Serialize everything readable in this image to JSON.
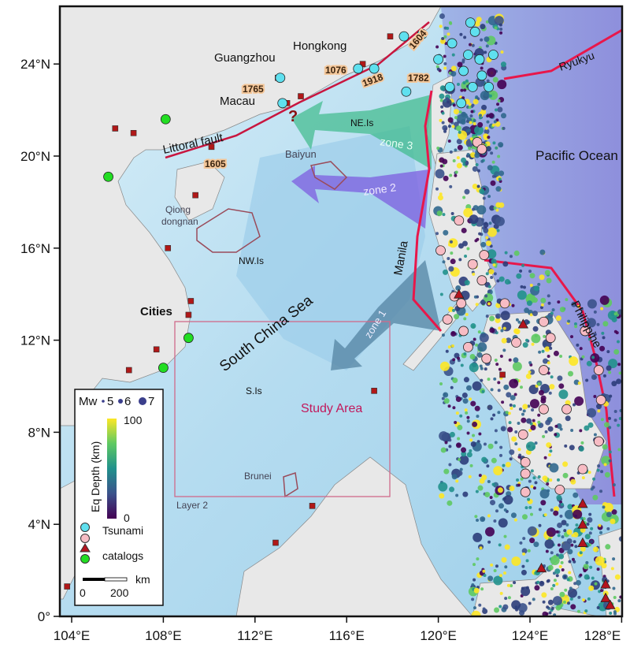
{
  "map": {
    "lon_range": [
      103.5,
      128.0
    ],
    "lat_range": [
      0,
      26.5
    ],
    "lon_ticks": [
      {
        "v": 104,
        "label": "104°E"
      },
      {
        "v": 108,
        "label": "108°E"
      },
      {
        "v": 112,
        "label": "112°E"
      },
      {
        "v": 116,
        "label": "116°E"
      },
      {
        "v": 120,
        "label": "120°E"
      },
      {
        "v": 124,
        "label": "124°E"
      },
      {
        "v": 128,
        "label": "128°E"
      }
    ],
    "lat_ticks": [
      {
        "v": 0,
        "label": "0°"
      },
      {
        "v": 4,
        "label": "4°N"
      },
      {
        "v": 8,
        "label": "8°N"
      },
      {
        "v": 12,
        "label": "12°N"
      },
      {
        "v": 16,
        "label": "16°N"
      },
      {
        "v": 20,
        "label": "20°N"
      },
      {
        "v": 24,
        "label": "24°N"
      }
    ],
    "colors": {
      "land": "#e6e6e6",
      "shelf": "#cfe9f5",
      "basin": "#a9d6ee",
      "pacific": "#9aa6e0",
      "trench": "#e8174a",
      "fault": "#c8163f",
      "tsunami_cyan": "#5fe0ef",
      "tsunami_pink": "#f7bcc4",
      "catalog_triangle": "#b4141e",
      "catalog_green": "#22dd22",
      "city_square": "#b01818",
      "study_area": "#c2185b"
    }
  },
  "labels": {
    "guangzhou": "Guangzhou",
    "hongkong": "Hongkong",
    "macau": "Macau",
    "question": "?",
    "littoral_fault": "Littoral fault",
    "ne_is": "NE.Is",
    "zone3": "zone 3",
    "zone2": "zone 2",
    "zone1": "zone 1",
    "baiyun": "Baiyun",
    "pacific": "Pacific Ocean",
    "ryukyu": "Ryukyu",
    "qiong1": "Qiong",
    "qiong2": "dongnan",
    "nw_is": "NW.Is",
    "manila": "Manila",
    "scs": "South China Sea",
    "philippine": "Philippine",
    "s_is": "S.Is",
    "study_area": "Study Area",
    "brunei": "Brunei",
    "layer2": "Layer 2",
    "cities": "Cities"
  },
  "dates": [
    "1765",
    "1076",
    "1918",
    "1604",
    "1782",
    "1605"
  ],
  "legend": {
    "mw_label": "Mw",
    "mw_sizes": [
      "5",
      "6",
      "7"
    ],
    "colorbar_title": "Eq Depth (km)",
    "colorbar_max": "100",
    "colorbar_min": "0",
    "tsunami": "Tsunami",
    "catalogs": "catalogs",
    "scale_unit": "km",
    "scale_min": "0",
    "scale_max": "200"
  },
  "tsunami_cyan": [
    [
      113.1,
      23.4
    ],
    [
      113.2,
      22.3
    ],
    [
      118.5,
      25.2
    ],
    [
      119.3,
      25.3
    ],
    [
      116.5,
      23.8
    ],
    [
      117.2,
      23.8
    ],
    [
      118.6,
      22.8
    ],
    [
      120.0,
      24.2
    ],
    [
      120.6,
      24.9
    ],
    [
      121.4,
      25.8
    ],
    [
      121.6,
      25.4
    ],
    [
      121.1,
      23.7
    ],
    [
      121.8,
      24.2
    ],
    [
      122.4,
      24.4
    ],
    [
      120.5,
      23.0
    ],
    [
      121.0,
      22.3
    ],
    [
      121.5,
      23.0
    ],
    [
      122.2,
      23.0
    ],
    [
      121.9,
      23.5
    ],
    [
      121.3,
      24.4
    ]
  ],
  "tsunami_pink": [
    [
      120.1,
      15.9
    ],
    [
      121.0,
      13.6
    ],
    [
      121.5,
      15.3
    ],
    [
      122.0,
      15.7
    ],
    [
      121.9,
      14.6
    ],
    [
      120.4,
      12.9
    ],
    [
      120.7,
      13.9
    ],
    [
      122.9,
      13.6
    ],
    [
      121.1,
      12.4
    ],
    [
      123.4,
      11.9
    ],
    [
      124.9,
      12.1
    ],
    [
      124.6,
      10.7
    ],
    [
      125.6,
      9.0
    ],
    [
      127.0,
      10.7
    ],
    [
      127.1,
      9.4
    ],
    [
      127.0,
      7.6
    ],
    [
      124.6,
      9.0
    ],
    [
      123.7,
      7.9
    ],
    [
      123.8,
      6.7
    ],
    [
      123.8,
      6.2
    ],
    [
      123.8,
      5.4
    ],
    [
      126.3,
      6.4
    ],
    [
      125.3,
      5.5
    ],
    [
      124.6,
      12.8
    ],
    [
      121.3,
      11.7
    ],
    [
      122.1,
      11.2
    ],
    [
      126.4,
      12.4
    ],
    [
      120.9,
      17.2
    ],
    [
      121.7,
      20.6
    ],
    [
      121.9,
      20.3
    ]
  ],
  "catalog_green": [
    [
      108.1,
      21.6
    ],
    [
      105.6,
      19.1
    ],
    [
      109.1,
      12.1
    ],
    [
      108.0,
      10.8
    ]
  ],
  "catalog_triangles": [
    [
      120.9,
      14.0
    ],
    [
      123.7,
      12.7
    ],
    [
      126.3,
      4.9
    ],
    [
      126.3,
      4.0
    ],
    [
      126.3,
      3.2
    ],
    [
      124.5,
      2.1
    ],
    [
      127.3,
      1.4
    ],
    [
      127.3,
      0.8
    ],
    [
      127.5,
      0.5
    ]
  ],
  "city_squares": [
    [
      105.9,
      21.2
    ],
    [
      106.7,
      21.0
    ],
    [
      108.2,
      16.0
    ],
    [
      109.4,
      18.3
    ],
    [
      109.2,
      13.7
    ],
    [
      109.1,
      13.1
    ],
    [
      107.7,
      11.6
    ],
    [
      106.5,
      10.7
    ],
    [
      107.4,
      8.1
    ],
    [
      112.9,
      3.2
    ],
    [
      114.5,
      4.8
    ],
    [
      117.2,
      9.8
    ],
    [
      113.0,
      23.4
    ],
    [
      114.0,
      22.6
    ],
    [
      113.4,
      22.3
    ],
    [
      117.9,
      25.2
    ],
    [
      116.7,
      24.0
    ],
    [
      110.1,
      20.4
    ],
    [
      122.8,
      10.5
    ],
    [
      103.8,
      1.3
    ]
  ]
}
